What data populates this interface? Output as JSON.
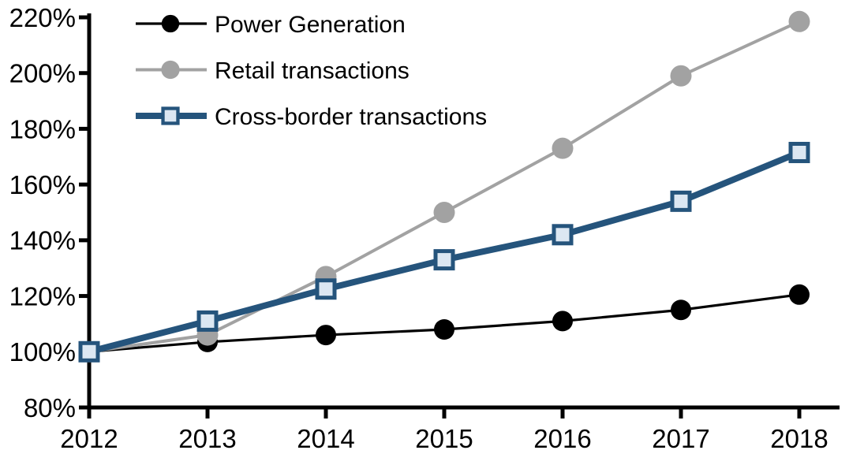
{
  "chart_data": {
    "type": "line",
    "title": "",
    "xlabel": "",
    "ylabel": "",
    "categories": [
      "2012",
      "2013",
      "2014",
      "2015",
      "2016",
      "2017",
      "2018"
    ],
    "y_axis": {
      "min": 80,
      "max": 220,
      "step": 20,
      "tick_labels": [
        "80%",
        "100%",
        "120%",
        "140%",
        "160%",
        "180%",
        "200%",
        "220%"
      ]
    },
    "grid": false,
    "legend_position": "top-left-inside",
    "series": [
      {
        "name": "Power Generation",
        "color": "#000000",
        "line_width": 3.2,
        "marker": "circle",
        "marker_fill": "#000000",
        "marker_radius": 13,
        "values": [
          100,
          103.5,
          106,
          108,
          111,
          115,
          120.5
        ]
      },
      {
        "name": "Retail transactions",
        "color": "#a2a2a2",
        "line_width": 4,
        "marker": "circle",
        "marker_fill": "#a2a2a2",
        "marker_radius": 13.5,
        "values": [
          100,
          106,
          127,
          150,
          173,
          199,
          218.5
        ]
      },
      {
        "name": "Cross-border transactions",
        "color": "#25547c",
        "line_width": 8,
        "marker": "square",
        "marker_fill": "#dce7f2",
        "marker_stroke": "#25547c",
        "marker_size": 22,
        "marker_stroke_width": 5,
        "values": [
          100,
          111,
          122.5,
          133,
          142,
          154,
          171.5
        ]
      }
    ],
    "axis_color": "#000000"
  }
}
